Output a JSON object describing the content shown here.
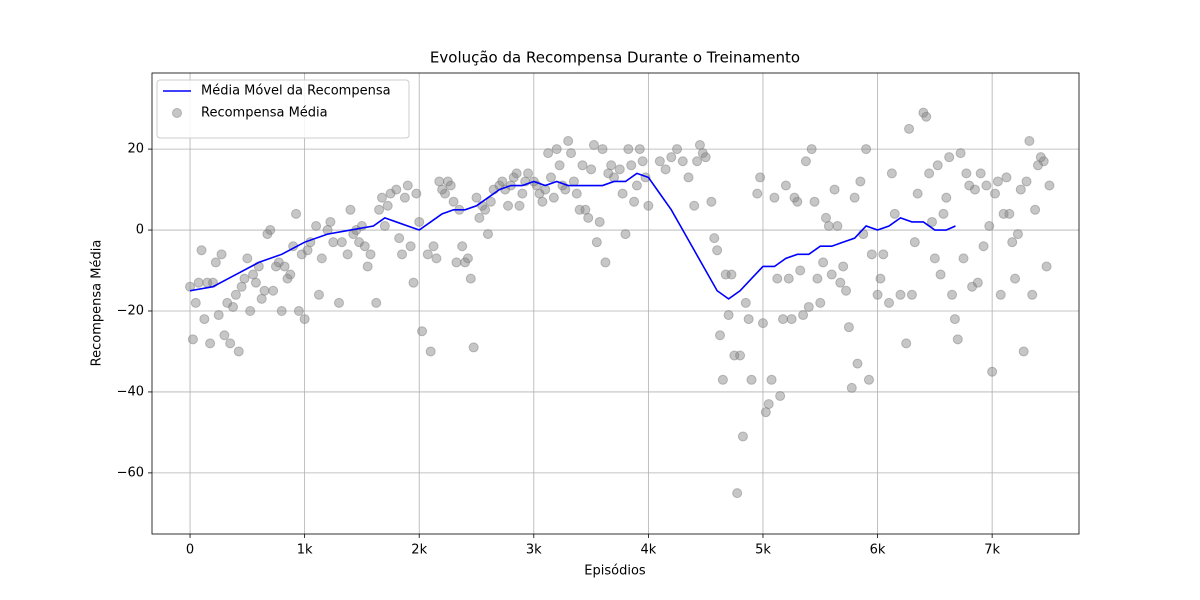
{
  "chart_data": {
    "type": "combo",
    "title": "Evolução da Recompensa Durante o Treinamento",
    "x_label": "Episódios",
    "y_label": "Recompensa Média",
    "xlim": [
      -332,
      7758
    ],
    "ylim": [
      -75.1,
      38.8
    ],
    "xticks": [
      0,
      {
        "value": 1000,
        "label": "1k"
      },
      {
        "value": 2000,
        "label": "2k"
      },
      {
        "value": 3000,
        "label": "3k"
      },
      {
        "value": 4000,
        "label": "4k"
      },
      {
        "value": 5000,
        "label": "5k"
      },
      {
        "value": 6000,
        "label": "6k"
      },
      {
        "value": 7000,
        "label": "7k"
      }
    ],
    "yticks": [
      {
        "value": -60,
        "label": "−60"
      },
      {
        "value": -40,
        "label": "−40"
      },
      {
        "value": -20,
        "label": "−20"
      },
      0,
      20
    ],
    "grid": true,
    "legend": "upper-left",
    "series": [
      {
        "name": "Média Móvel da Recompensa",
        "type": "line",
        "color": "#0000ff",
        "x": [
          0,
          200,
          400,
          600,
          800,
          1000,
          1200,
          1400,
          1600,
          1700,
          1800,
          1900,
          2000,
          2100,
          2200,
          2300,
          2400,
          2500,
          2600,
          2700,
          2800,
          2900,
          3000,
          3100,
          3200,
          3300,
          3400,
          3500,
          3600,
          3700,
          3800,
          3900,
          4000,
          4100,
          4200,
          4300,
          4400,
          4500,
          4600,
          4700,
          4800,
          4900,
          5000,
          5100,
          5200,
          5300,
          5400,
          5500,
          5600,
          5700,
          5800,
          5900,
          6000,
          6100,
          6200,
          6300,
          6400,
          6500,
          6600,
          6680
        ],
        "values": [
          -15,
          -14,
          -11,
          -8,
          -6,
          -3,
          -1,
          0,
          1,
          3,
          2,
          1,
          0,
          2,
          4,
          5,
          5,
          6,
          8,
          10,
          11,
          11,
          12,
          11,
          12,
          11,
          11,
          11,
          11,
          12,
          12,
          14,
          13,
          9,
          5,
          0,
          -5,
          -10,
          -15,
          -17,
          -15,
          -12,
          -9,
          -9,
          -7,
          -6,
          -6,
          -4,
          -4,
          -3,
          -2,
          1,
          0,
          1,
          3,
          2,
          2,
          0,
          0,
          1
        ]
      },
      {
        "name": "Recompensa Média",
        "type": "scatter",
        "color": "#808080",
        "x": [
          0,
          25,
          50,
          75,
          100,
          125,
          150,
          175,
          200,
          225,
          250,
          275,
          300,
          325,
          350,
          375,
          400,
          425,
          450,
          475,
          500,
          525,
          550,
          575,
          600,
          625,
          650,
          675,
          700,
          725,
          750,
          775,
          800,
          825,
          850,
          875,
          900,
          925,
          950,
          975,
          1000,
          1025,
          1050,
          1100,
          1125,
          1150,
          1200,
          1225,
          1250,
          1300,
          1325,
          1375,
          1400,
          1425,
          1450,
          1475,
          1500,
          1525,
          1550,
          1575,
          1625,
          1650,
          1675,
          1700,
          1725,
          1750,
          1800,
          1825,
          1850,
          1875,
          1900,
          1925,
          1950,
          1975,
          2000,
          2025,
          2075,
          2100,
          2125,
          2150,
          2175,
          2200,
          2225,
          2250,
          2275,
          2300,
          2325,
          2350,
          2375,
          2400,
          2425,
          2450,
          2475,
          2500,
          2525,
          2550,
          2575,
          2600,
          2625,
          2650,
          2700,
          2725,
          2750,
          2775,
          2800,
          2825,
          2850,
          2875,
          2900,
          2925,
          2950,
          3000,
          3025,
          3050,
          3075,
          3100,
          3125,
          3150,
          3175,
          3200,
          3225,
          3250,
          3275,
          3300,
          3325,
          3350,
          3375,
          3400,
          3425,
          3450,
          3475,
          3500,
          3525,
          3550,
          3575,
          3600,
          3625,
          3650,
          3675,
          3700,
          3750,
          3775,
          3800,
          3825,
          3850,
          3875,
          3900,
          3925,
          3950,
          3975,
          4000,
          4100,
          4150,
          4200,
          4250,
          4300,
          4350,
          4400,
          4425,
          4450,
          4475,
          4500,
          4550,
          4575,
          4600,
          4625,
          4650,
          4675,
          4700,
          4725,
          4750,
          4775,
          4800,
          4825,
          4850,
          4875,
          4900,
          4950,
          4975,
          5000,
          5025,
          5050,
          5075,
          5100,
          5125,
          5150,
          5175,
          5200,
          5225,
          5250,
          5275,
          5300,
          5325,
          5350,
          5375,
          5400,
          5425,
          5450,
          5475,
          5500,
          5525,
          5550,
          5575,
          5600,
          5625,
          5650,
          5675,
          5700,
          5725,
          5750,
          5775,
          5800,
          5825,
          5850,
          5875,
          5900,
          5925,
          5950,
          6000,
          6025,
          6050,
          6100,
          6125,
          6150,
          6200,
          6250,
          6275,
          6300,
          6325,
          6350,
          6400,
          6425,
          6450,
          6475,
          6500,
          6525,
          6550,
          6575,
          6600,
          6625,
          6650,
          6675,
          6700,
          6725,
          6750,
          6775,
          6800,
          6825,
          6850,
          6875,
          6900,
          6925,
          6950,
          6975,
          7000,
          7025,
          7050,
          7075,
          7100,
          7125,
          7150,
          7175,
          7200,
          7225,
          7250,
          7275,
          7300,
          7325,
          7350,
          7375,
          7400,
          7425,
          7450,
          7475,
          7500
        ],
        "values": [
          -14,
          -27,
          -18,
          -13,
          -5,
          -22,
          -13,
          -28,
          -13,
          -8,
          -21,
          -6,
          -26,
          -18,
          -28,
          -19,
          -16,
          -30,
          -14,
          -12,
          -7,
          -20,
          -11,
          -13,
          -9,
          -17,
          -15,
          -1,
          0,
          -15,
          -9,
          -8,
          -20,
          -9,
          -12,
          -11,
          -4,
          4,
          -20,
          -6,
          -22,
          -5,
          -3,
          1,
          -16,
          -7,
          0,
          2,
          -3,
          -18,
          -3,
          -6,
          5,
          -1,
          0,
          -3,
          1,
          -4,
          -9,
          -6,
          -18,
          5,
          8,
          1,
          6,
          9,
          10,
          -2,
          -6,
          8,
          11,
          -4,
          -13,
          9,
          2,
          -25,
          -6,
          -30,
          -4,
          -7,
          12,
          10,
          9,
          12,
          11,
          7,
          -8,
          5,
          -4,
          -8,
          -7,
          -12,
          -29,
          8,
          3,
          6,
          5,
          -1,
          7,
          10,
          11,
          12,
          10,
          6,
          11,
          13,
          14,
          6,
          9,
          12,
          14,
          12,
          11,
          9,
          7,
          10,
          19,
          13,
          8,
          20,
          16,
          11,
          10,
          22,
          19,
          12,
          9,
          5,
          16,
          5,
          3,
          15,
          21,
          -3,
          2,
          20,
          -8,
          14,
          16,
          13,
          15,
          9,
          -1,
          20,
          16,
          7,
          11,
          20,
          17,
          13,
          6,
          17,
          15,
          18,
          20,
          17,
          13,
          6,
          17,
          21,
          19,
          18,
          7,
          -2,
          -5,
          -26,
          -37,
          -11,
          -21,
          -11,
          -31,
          -65,
          -31,
          -51,
          -18,
          -22,
          -37,
          9,
          13,
          -23,
          -45,
          -43,
          -37,
          8,
          -12,
          -41,
          -22,
          11,
          -12,
          -22,
          8,
          7,
          -10,
          -21,
          17,
          -19,
          20,
          7,
          -12,
          -18,
          -8,
          3,
          1,
          -11,
          10,
          1,
          -13,
          -9,
          -15,
          -24,
          -39,
          8,
          -33,
          12,
          -1,
          20,
          -37,
          -6,
          -16,
          -12,
          -6,
          -18,
          14,
          4,
          -16,
          -28,
          25,
          -16,
          -3,
          9,
          29,
          28,
          14,
          2,
          -7,
          16,
          -11,
          4,
          8,
          18,
          -16,
          -22,
          -27,
          19,
          -7,
          14,
          11,
          -14,
          10,
          -13,
          14,
          -4,
          11,
          1,
          -35,
          9,
          12,
          -16,
          4,
          13,
          4,
          -3,
          -12,
          -1,
          10,
          -30,
          12,
          22,
          -16,
          5,
          16,
          18,
          17,
          -9,
          11
        ]
      }
    ]
  }
}
